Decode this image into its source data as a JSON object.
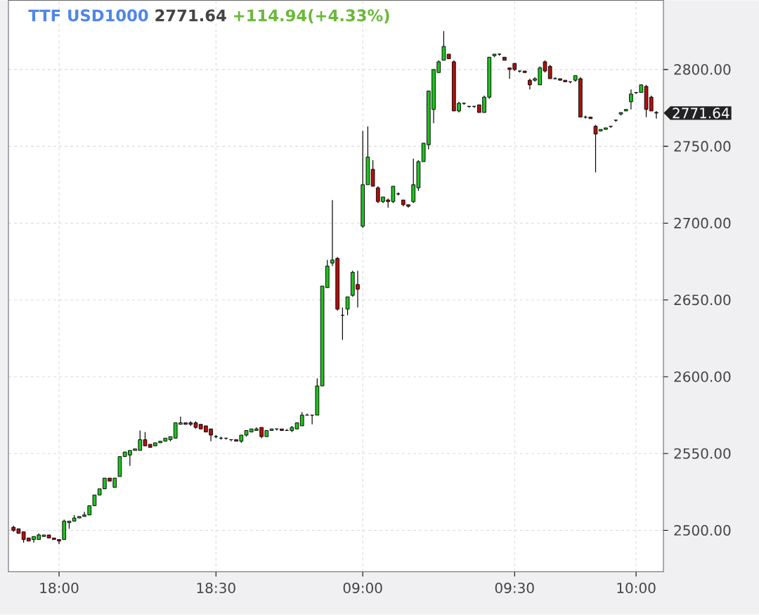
{
  "chart_data": {
    "type": "candlestick",
    "title": "TTF USD1000",
    "annotations": [
      "2771.64",
      "+114.94(+4.33%)",
      "2771.64"
    ],
    "categories": [
      null,
      null,
      null,
      null,
      null,
      null,
      null,
      null,
      null,
      "18:00",
      null,
      null,
      null,
      null,
      null,
      null,
      null,
      null,
      null,
      null,
      null,
      null,
      null,
      null,
      null,
      null,
      null,
      null,
      null,
      null,
      null,
      null,
      null,
      null,
      null,
      null,
      null,
      null,
      null,
      null,
      "18:30",
      null,
      null,
      null,
      null,
      null,
      null,
      null,
      null,
      null,
      null,
      null,
      null,
      null,
      null,
      null,
      null,
      null,
      null,
      null,
      null,
      null,
      null,
      null,
      null,
      null,
      null,
      null,
      null,
      "09:00",
      null,
      null,
      null,
      null,
      null,
      null,
      null,
      null,
      null,
      null,
      null,
      null,
      null,
      null,
      null,
      null,
      null,
      null,
      null,
      null,
      null,
      null,
      null,
      null,
      null,
      null,
      null,
      null,
      null,
      "09:30",
      null,
      null,
      null,
      null,
      null,
      null,
      null,
      null,
      null,
      null,
      null,
      null,
      null,
      null,
      null,
      null,
      null,
      null,
      null,
      null,
      null,
      null,
      null,
      "10:00",
      null,
      null,
      null,
      null
    ],
    "ohlc": [
      [
        2502,
        2503,
        2499,
        2500
      ],
      [
        2501,
        2501,
        2498,
        2498
      ],
      [
        2499,
        2499,
        2492,
        2494
      ],
      [
        2495,
        2495,
        2493,
        2493
      ],
      [
        2494,
        2496,
        2492,
        2496
      ],
      [
        2494,
        2498,
        2494,
        2497
      ],
      [
        2496,
        2497,
        2496,
        2497
      ],
      [
        2497,
        2497,
        2495,
        2495
      ],
      [
        2495,
        2495,
        2494,
        2494
      ],
      [
        2494,
        2494,
        2491,
        2493
      ],
      [
        2494,
        2507,
        2494,
        2506
      ],
      [
        2505,
        2506,
        2501,
        2506
      ],
      [
        2506,
        2510,
        2506,
        2508
      ],
      [
        2508,
        2509,
        2508,
        2509
      ],
      [
        2509,
        2512,
        2509,
        2510
      ],
      [
        2510,
        2516,
        2510,
        2516
      ],
      [
        2516,
        2523,
        2516,
        2523
      ],
      [
        2523,
        2527,
        2523,
        2527
      ],
      [
        2527,
        2534,
        2527,
        2534
      ],
      [
        2534,
        2534,
        2532,
        2532
      ],
      [
        2528,
        2534,
        2528,
        2534
      ],
      [
        2535,
        2548,
        2535,
        2548
      ],
      [
        2548,
        2551,
        2548,
        2551
      ],
      [
        2549,
        2552,
        2542,
        2552
      ],
      [
        2552,
        2553,
        2552,
        2553
      ],
      [
        2552,
        2565,
        2552,
        2559
      ],
      [
        2559,
        2564,
        2555,
        2555
      ],
      [
        2556,
        2556,
        2554,
        2554
      ],
      [
        2555,
        2557,
        2555,
        2557
      ],
      [
        2557,
        2558,
        2557,
        2558
      ],
      [
        2558,
        2560,
        2558,
        2560
      ],
      [
        2559,
        2561,
        2558,
        2561
      ],
      [
        2560,
        2570,
        2560,
        2570
      ],
      [
        2569,
        2574,
        2569,
        2570
      ],
      [
        2570,
        2570,
        2569,
        2569
      ],
      [
        2570,
        2571,
        2568,
        2569
      ],
      [
        2570,
        2571,
        2566,
        2567
      ],
      [
        2569,
        2569,
        2566,
        2566
      ],
      [
        2568,
        2568,
        2564,
        2564
      ],
      [
        2566,
        2566,
        2558,
        2562
      ],
      [
        2561,
        2562,
        2560,
        2561
      ],
      [
        2560,
        2561,
        2559,
        2560
      ],
      [
        2560,
        2560,
        2559,
        2560
      ],
      [
        2559,
        2559,
        2558,
        2559
      ],
      [
        2559,
        2559,
        2558,
        2558
      ],
      [
        2558,
        2562,
        2557,
        2562
      ],
      [
        2562,
        2565,
        2561,
        2565
      ],
      [
        2564,
        2566,
        2564,
        2566
      ],
      [
        2565,
        2567,
        2565,
        2566
      ],
      [
        2567,
        2567,
        2560,
        2561
      ],
      [
        2561,
        2565,
        2561,
        2565
      ],
      [
        2565,
        2566,
        2565,
        2566
      ],
      [
        2566,
        2566,
        2565,
        2566
      ],
      [
        2566,
        2566,
        2565,
        2565
      ],
      [
        2565,
        2566,
        2565,
        2565
      ],
      [
        2565,
        2568,
        2564,
        2567
      ],
      [
        2566,
        2570,
        2566,
        2570
      ],
      [
        2568,
        2577,
        2568,
        2575
      ],
      [
        2575,
        2576,
        2575,
        2575
      ],
      [
        2575,
        2575,
        2569,
        2575
      ],
      [
        2575,
        2599,
        2575,
        2594
      ],
      [
        2594,
        2659,
        2594,
        2659
      ],
      [
        2658,
        2676,
        2658,
        2672
      ],
      [
        2674,
        2715,
        2672,
        2676
      ],
      [
        2677,
        2678,
        2643,
        2644
      ],
      [
        2640,
        2645,
        2624,
        2640
      ],
      [
        2644,
        2652,
        2640,
        2652
      ],
      [
        2653,
        2669,
        2652,
        2668
      ],
      [
        2660,
        2669,
        2645,
        2657
      ],
      [
        2698,
        2760,
        2697,
        2725
      ],
      [
        2725,
        2763,
        2725,
        2743
      ],
      [
        2735,
        2741,
        2724,
        2724
      ],
      [
        2723,
        2724,
        2713,
        2714
      ],
      [
        2714,
        2717,
        2713,
        2717
      ],
      [
        2715,
        2716,
        2710,
        2714
      ],
      [
        2714,
        2724,
        2713,
        2724
      ],
      [
        2719,
        2720,
        2718,
        2719
      ],
      [
        2715,
        2715,
        2711,
        2712
      ],
      [
        2712,
        2712,
        2710,
        2711
      ],
      [
        2714,
        2742,
        2713,
        2725
      ],
      [
        2723,
        2741,
        2721,
        2740
      ],
      [
        2740,
        2752,
        2740,
        2752
      ],
      [
        2751,
        2786,
        2748,
        2786
      ],
      [
        2774,
        2800,
        2765,
        2800
      ],
      [
        2798,
        2806,
        2798,
        2805
      ],
      [
        2806,
        2825,
        2806,
        2815
      ],
      [
        2810,
        2810,
        2807,
        2807
      ],
      [
        2805,
        2806,
        2773,
        2773
      ],
      [
        2773,
        2779,
        2772,
        2778
      ],
      [
        2778,
        2778,
        2777,
        2778
      ],
      [
        2776,
        2776,
        2775,
        2776
      ],
      [
        2776,
        2776,
        2775,
        2776
      ],
      [
        2777,
        2777,
        2772,
        2772
      ],
      [
        2772,
        2783,
        2772,
        2782
      ],
      [
        2782,
        2808,
        2781,
        2808
      ],
      [
        2809,
        2810,
        2808,
        2810
      ],
      [
        2810,
        2810,
        2809,
        2810
      ],
      [
        2808,
        2808,
        2806,
        2806
      ],
      [
        2801,
        2801,
        2794,
        2800
      ],
      [
        2804,
        2804,
        2799,
        2800
      ],
      [
        2799,
        2799,
        2798,
        2799
      ],
      [
        2799,
        2799,
        2798,
        2798
      ],
      [
        2793,
        2794,
        2787,
        2790
      ],
      [
        2793,
        2795,
        2792,
        2794
      ],
      [
        2790,
        2802,
        2790,
        2801
      ],
      [
        2805,
        2806,
        2798,
        2799
      ],
      [
        2802,
        2803,
        2794,
        2794
      ],
      [
        2794,
        2795,
        2794,
        2794
      ],
      [
        2794,
        2794,
        2793,
        2793
      ],
      [
        2793,
        2793,
        2792,
        2792
      ],
      [
        2792,
        2792,
        2791,
        2792
      ],
      [
        2793,
        2796,
        2792,
        2796
      ],
      [
        2794,
        2795,
        2769,
        2769
      ],
      [
        2769,
        2770,
        2768,
        2769
      ],
      [
        2769,
        2769,
        2768,
        2768
      ],
      [
        2763,
        2764,
        2733,
        2758
      ],
      [
        2760,
        2761,
        2760,
        2761
      ],
      [
        2761,
        2762,
        2761,
        2762
      ],
      [
        2763,
        2763,
        2762,
        2763
      ],
      [
        2767,
        2767,
        2766,
        2767
      ],
      [
        2771,
        2772,
        2770,
        2772
      ],
      [
        2773,
        2774,
        2773,
        2774
      ],
      [
        2779,
        2787,
        2774,
        2784
      ],
      [
        2785,
        2785,
        2784,
        2785
      ],
      [
        2785,
        2790,
        2785,
        2790
      ],
      [
        2789,
        2790,
        2769,
        2774
      ],
      [
        2782,
        2783,
        2773,
        2773
      ],
      [
        2772,
        2773,
        2768,
        2771.64
      ]
    ],
    "ylim": [
      2473,
      2845
    ],
    "yticks": [
      {
        "value": 2500,
        "label": "2500.00"
      },
      {
        "value": 2550,
        "label": "2550.00"
      },
      {
        "value": 2600,
        "label": "2600.00"
      },
      {
        "value": 2650,
        "label": "2650.00"
      },
      {
        "value": 2700,
        "label": "2700.00"
      },
      {
        "value": 2750,
        "label": "2750.00"
      },
      {
        "value": 2800,
        "label": "2800.00"
      }
    ],
    "grid": true
  }
}
